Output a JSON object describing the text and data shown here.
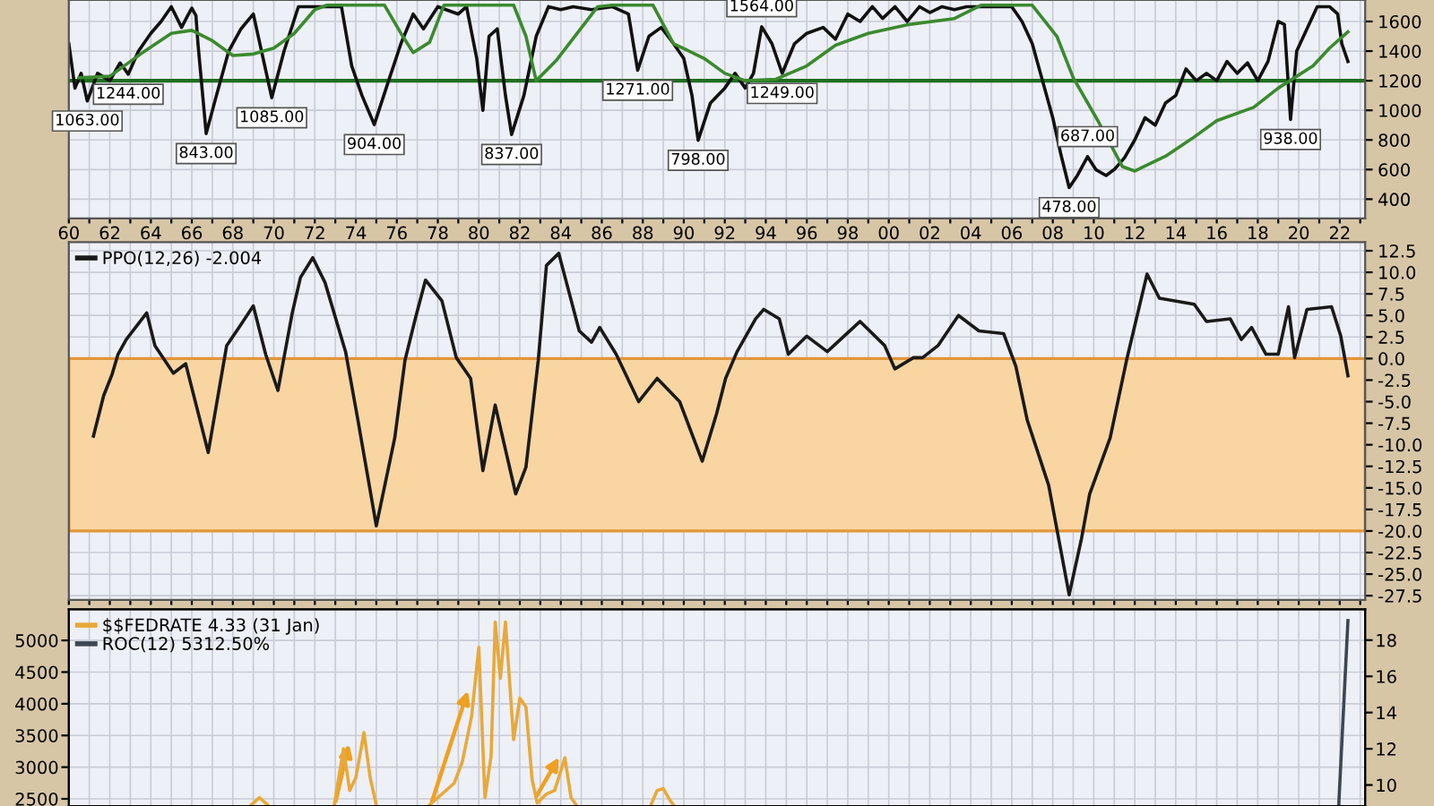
{
  "chart_data": [
    {
      "type": "line",
      "xlim": [
        1960,
        2023.24
      ],
      "ylim": [
        270,
        1745
      ],
      "xticks": [
        {
          "value": 1960,
          "label": "60"
        },
        {
          "value": 1961,
          "label": null
        },
        {
          "value": 1962,
          "label": "62"
        },
        {
          "value": 1963,
          "label": null
        },
        {
          "value": 1964,
          "label": "64"
        },
        {
          "value": 1965,
          "label": null
        },
        {
          "value": 1966,
          "label": "66"
        },
        {
          "value": 1967,
          "label": null
        },
        {
          "value": 1968,
          "label": "68"
        },
        {
          "value": 1969,
          "label": null
        },
        {
          "value": 1970,
          "label": "70"
        },
        {
          "value": 1971,
          "label": null
        },
        {
          "value": 1972,
          "label": "72"
        },
        {
          "value": 1973,
          "label": null
        },
        {
          "value": 1974,
          "label": "74"
        },
        {
          "value": 1975,
          "label": null
        },
        {
          "value": 1976,
          "label": "76"
        },
        {
          "value": 1977,
          "label": null
        },
        {
          "value": 1978,
          "label": "78"
        },
        {
          "value": 1979,
          "label": null
        },
        {
          "value": 1980,
          "label": "80"
        },
        {
          "value": 1981,
          "label": null
        },
        {
          "value": 1982,
          "label": "82"
        },
        {
          "value": 1983,
          "label": null
        },
        {
          "value": 1984,
          "label": "84"
        },
        {
          "value": 1985,
          "label": null
        },
        {
          "value": 1986,
          "label": "86"
        },
        {
          "value": 1987,
          "label": null
        },
        {
          "value": 1988,
          "label": "88"
        },
        {
          "value": 1989,
          "label": null
        },
        {
          "value": 1990,
          "label": "90"
        },
        {
          "value": 1991,
          "label": null
        },
        {
          "value": 1992,
          "label": "92"
        },
        {
          "value": 1993,
          "label": null
        },
        {
          "value": 1994,
          "label": "94"
        },
        {
          "value": 1995,
          "label": null
        },
        {
          "value": 1996,
          "label": "96"
        },
        {
          "value": 1997,
          "label": null
        },
        {
          "value": 1998,
          "label": "98"
        },
        {
          "value": 1999,
          "label": null
        },
        {
          "value": 2000,
          "label": "00"
        },
        {
          "value": 2001,
          "label": null
        },
        {
          "value": 2002,
          "label": "02"
        },
        {
          "value": 2003,
          "label": null
        },
        {
          "value": 2004,
          "label": "04"
        },
        {
          "value": 2005,
          "label": null
        },
        {
          "value": 2006,
          "label": "06"
        },
        {
          "value": 2007,
          "label": null
        },
        {
          "value": 2008,
          "label": "08"
        },
        {
          "value": 2009,
          "label": null
        },
        {
          "value": 2010,
          "label": "10"
        },
        {
          "value": 2011,
          "label": null
        },
        {
          "value": 2012,
          "label": "12"
        },
        {
          "value": 2013,
          "label": null
        },
        {
          "value": 2014,
          "label": "14"
        },
        {
          "value": 2015,
          "label": null
        },
        {
          "value": 2016,
          "label": "16"
        },
        {
          "value": 2017,
          "label": null
        },
        {
          "value": 2018,
          "label": "18"
        },
        {
          "value": 2019,
          "label": null
        },
        {
          "value": 2020,
          "label": "20"
        },
        {
          "value": 2021,
          "label": null
        },
        {
          "value": 2022,
          "label": "22"
        },
        {
          "value": 2023,
          "label": null
        }
      ],
      "yticks": [
        400,
        600,
        800,
        1000,
        1200,
        1400,
        1600
      ],
      "grid": true,
      "series": [
        {
          "color": "#111111",
          "x": [
            1960.0,
            1960.3,
            1960.6,
            1960.9,
            1961.4,
            1962.0,
            1962.5,
            1962.9,
            1963.4,
            1964.0,
            1964.5,
            1965.0,
            1965.5,
            1965.8,
            1966.0,
            1966.2,
            1966.3,
            1966.7,
            1967.2,
            1967.8,
            1968.4,
            1969.0,
            1969.4,
            1969.9,
            1970.5,
            1971.2,
            1973.3,
            1973.8,
            1974.3,
            1974.9,
            1975.6,
            1976.2,
            1976.8,
            1977.3,
            1978.0,
            1979.0,
            1979.4,
            1979.9,
            1980.2,
            1980.5,
            1980.9,
            1981.3,
            1981.6,
            1982.2,
            1982.8,
            1983.4,
            1984.0,
            1984.6,
            1985.5,
            1986.5,
            1987.3,
            1987.75,
            1988.3,
            1988.9,
            1989.5,
            1990.0,
            1990.4,
            1990.7,
            1991.3,
            1992.0,
            1992.5,
            1993.0,
            1993.4,
            1993.8,
            1994.3,
            1994.8,
            1995.4,
            1996.0,
            1996.8,
            1997.4,
            1998.0,
            1998.6,
            1999.2,
            1999.7,
            2000.3,
            2000.9,
            2001.5,
            2002.0,
            2002.6,
            2003.2,
            2003.8,
            2006.0,
            2006.5,
            2007.0,
            2007.5,
            2008.0,
            2008.4,
            2008.8,
            2009.2,
            2009.7,
            2010.1,
            2010.6,
            2011.0,
            2011.5,
            2012.0,
            2012.5,
            2013.0,
            2013.5,
            2014.0,
            2014.5,
            2015.0,
            2015.5,
            2016.0,
            2016.5,
            2017.0,
            2017.5,
            2018.0,
            2018.5,
            2019.0,
            2019.3,
            2019.6,
            2019.9,
            2020.4,
            2020.9,
            2021.5,
            2021.9,
            2022.1,
            2022.4
          ],
          "values": [
            1450,
            1150,
            1250,
            1063,
            1250,
            1200,
            1320,
            1244,
            1400,
            1520,
            1600,
            1700,
            1560,
            1640,
            1690,
            1640,
            1450,
            843,
            1100,
            1400,
            1550,
            1650,
            1400,
            1085,
            1400,
            1700,
            1700,
            1300,
            1100,
            904,
            1200,
            1450,
            1650,
            1550,
            1700,
            1650,
            1700,
            1350,
            1000,
            1500,
            1550,
            1100,
            837,
            1100,
            1500,
            1700,
            1680,
            1700,
            1680,
            1700,
            1650,
            1271,
            1500,
            1560,
            1450,
            1350,
            1100,
            798,
            1050,
            1150,
            1250,
            1150,
            1250,
            1564,
            1450,
            1249,
            1450,
            1520,
            1560,
            1480,
            1650,
            1600,
            1700,
            1620,
            1700,
            1600,
            1700,
            1660,
            1700,
            1680,
            1700,
            1700,
            1600,
            1450,
            1200,
            950,
            700,
            478,
            560,
            687,
            600,
            560,
            600,
            680,
            800,
            950,
            900,
            1050,
            1100,
            1280,
            1200,
            1250,
            1200,
            1330,
            1250,
            1320,
            1200,
            1330,
            1600,
            1580,
            938,
            1400,
            1550,
            1700,
            1700,
            1650,
            1450,
            1330
          ]
        },
        {
          "color": "#3b8a2e",
          "x": [
            1960.5,
            1962.0,
            1963.5,
            1965.0,
            1966.0,
            1967.0,
            1968.0,
            1969.0,
            1970.0,
            1971.0,
            1972.0,
            1972.6,
            1975.4,
            1976.2,
            1976.8,
            1977.6,
            1978.3,
            1981.7,
            1982.3,
            1982.8,
            1983.8,
            1984.8,
            1985.8,
            1986.5,
            1988.5,
            1989.5,
            1991.0,
            1992.0,
            1993.0,
            1994.5,
            1996.0,
            1997.4,
            1999.0,
            2001.0,
            2003.2,
            2004.5,
            2007.0,
            2008.2,
            2009.0,
            2010.2,
            2011.4,
            2012.0,
            2013.5,
            2014.8,
            2016.0,
            2017.8,
            2019.0,
            2020.7,
            2021.5,
            2022.4
          ],
          "values": [
            1220,
            1230,
            1380,
            1520,
            1540,
            1470,
            1370,
            1380,
            1420,
            1520,
            1680,
            1710,
            1710,
            1520,
            1390,
            1460,
            1710,
            1710,
            1500,
            1200,
            1340,
            1520,
            1700,
            1710,
            1710,
            1450,
            1350,
            1250,
            1200,
            1210,
            1300,
            1440,
            1520,
            1580,
            1620,
            1710,
            1710,
            1500,
            1220,
            930,
            620,
            590,
            690,
            810,
            930,
            1020,
            1150,
            1300,
            1420,
            1530
          ]
        }
      ],
      "ref_lines": [
        {
          "axis": "y",
          "value": 1200,
          "color": "#1f6e1f"
        }
      ],
      "annotations": [
        {
          "text": "1063.00",
          "x": 1960.9,
          "y": 1063
        },
        {
          "text": "1244.00",
          "x": 1962.9,
          "y": 1244
        },
        {
          "text": "843.00",
          "x": 1966.7,
          "y": 843
        },
        {
          "text": "1085.00",
          "x": 1969.9,
          "y": 1085
        },
        {
          "text": "904.00",
          "x": 1974.9,
          "y": 904
        },
        {
          "text": "837.00",
          "x": 1981.6,
          "y": 837
        },
        {
          "text": "1271.00",
          "x": 1987.75,
          "y": 1271
        },
        {
          "text": "798.00",
          "x": 1990.7,
          "y": 798
        },
        {
          "text": "1564.00",
          "x": 1993.8,
          "y": 1564
        },
        {
          "text": "1249.00",
          "x": 1994.8,
          "y": 1249
        },
        {
          "text": "478.00",
          "x": 2008.8,
          "y": 478
        },
        {
          "text": "687.00",
          "x": 2009.7,
          "y": 687
        },
        {
          "text": "938.00",
          "x": 2019.6,
          "y": 938
        }
      ]
    },
    {
      "type": "line",
      "xlim": [
        1960,
        2023.24
      ],
      "ylim": [
        -28,
        13.5
      ],
      "tick_labels": "y",
      "grid": true,
      "legend": "top left",
      "xticks": [
        1960,
        1961,
        1962,
        1963,
        1964,
        1965,
        1966,
        1967,
        1968,
        1969,
        1970,
        1971,
        1972,
        1973,
        1974,
        1975,
        1976,
        1977,
        1978,
        1979,
        1980,
        1981,
        1982,
        1983,
        1984,
        1985,
        1986,
        1987,
        1988,
        1989,
        1990,
        1991,
        1992,
        1993,
        1994,
        1995,
        1996,
        1997,
        1998,
        1999,
        2000,
        2001,
        2002,
        2003,
        2004,
        2005,
        2006,
        2007,
        2008,
        2009,
        2010,
        2011,
        2012,
        2013,
        2014,
        2015,
        2016,
        2017,
        2018,
        2019,
        2020,
        2021,
        2022,
        2023
      ],
      "yticks": [
        {
          "value": 12.5,
          "label": "12.5"
        },
        {
          "value": 10,
          "label": "10.0"
        },
        {
          "value": 7.5,
          "label": "7.5"
        },
        {
          "value": 5,
          "label": "5.0"
        },
        {
          "value": 2.5,
          "label": "2.5"
        },
        {
          "value": 0,
          "label": "0.0"
        },
        {
          "value": -2.5,
          "label": "-2.5"
        },
        {
          "value": -5,
          "label": "-5.0"
        },
        {
          "value": -7.5,
          "label": "-7.5"
        },
        {
          "value": -10,
          "label": "-10.0"
        },
        {
          "value": -12.5,
          "label": "-12.5"
        },
        {
          "value": -15,
          "label": "-15.0"
        },
        {
          "value": -17.5,
          "label": "-17.5"
        },
        {
          "value": -20,
          "label": "-20.0"
        },
        {
          "value": -22.5,
          "label": "-22.5"
        },
        {
          "value": -25,
          "label": "-25.0"
        },
        {
          "value": -27.5,
          "label": "-27.5"
        }
      ],
      "bands": [
        {
          "axis": "y",
          "from": -20,
          "to": 0,
          "color": "#f9d5a2"
        }
      ],
      "series": [
        {
          "name": "PPO(12,26) -2.004",
          "color": "#1a1a1a",
          "x": [
            1961.2,
            1961.7,
            1962.1,
            1962.4,
            1962.8,
            1963.8,
            1964.2,
            1965.1,
            1965.7,
            1966.8,
            1967.7,
            1968.3,
            1969.0,
            1969.6,
            1970.2,
            1970.9,
            1971.3,
            1971.9,
            1972.5,
            1973.5,
            1974.1,
            1975.0,
            1975.9,
            1976.4,
            1976.9,
            1977.4,
            1978.2,
            1978.9,
            1979.6,
            1980.2,
            1980.8,
            1981.8,
            1982.3,
            1982.9,
            1983.3,
            1983.9,
            1984.9,
            1985.5,
            1985.9,
            1986.7,
            1987.8,
            1988.7,
            1989.8,
            1990.9,
            1991.6,
            1992.04,
            1992.6,
            1993.5,
            1993.9,
            1994.66,
            1995.1,
            1996.0,
            1997.0,
            1998.6,
            1999.8,
            2000.3,
            2001.2,
            2001.65,
            2002.4,
            2003.4,
            2004.4,
            2005.6,
            2006.2,
            2006.75,
            2007.8,
            2008.8,
            2009.4,
            2009.8,
            2010.8,
            2011.6,
            2012.6,
            2013.2,
            2014.9,
            2015.5,
            2016.66,
            2017.2,
            2017.7,
            2018.4,
            2019.0,
            2019.5,
            2019.8,
            2020.4,
            2021.6,
            2022.05,
            2022.4
          ],
          "values": [
            -9.0,
            -4.3,
            -1.9,
            0.5,
            2.2,
            5.3,
            1.5,
            -1.7,
            -0.6,
            -10.9,
            1.5,
            3.6,
            6.1,
            0.5,
            -3.7,
            5.3,
            9.4,
            11.7,
            8.8,
            0.8,
            -7.1,
            -19.4,
            -9.2,
            -0.2,
            4.6,
            9.1,
            6.7,
            0.1,
            -2.3,
            -13.0,
            -5.4,
            -15.7,
            -12.6,
            -0.2,
            10.8,
            12.2,
            3.2,
            1.9,
            3.6,
            0.5,
            -5.0,
            -2.3,
            -5.0,
            -11.9,
            -6.4,
            -2.3,
            0.8,
            4.6,
            5.7,
            4.6,
            0.5,
            2.6,
            0.8,
            4.3,
            1.5,
            -1.2,
            0.1,
            0.1,
            1.5,
            5.0,
            3.2,
            2.9,
            -0.9,
            -7.1,
            -14.7,
            -27.4,
            -20.9,
            -15.7,
            -9.2,
            -0.2,
            9.8,
            7.0,
            6.3,
            4.3,
            4.6,
            2.2,
            3.6,
            0.5,
            0.5,
            6.0,
            0.1,
            5.7,
            6.0,
            2.6,
            -2.004
          ]
        }
      ]
    },
    {
      "type": "line",
      "xlim": [
        1960,
        2023.24
      ],
      "ylim": [
        2387,
        5490
      ],
      "y2lim": [
        8.84,
        19.7
      ],
      "tick_labels": "y",
      "grid": true,
      "legend": "top left",
      "xticks": [
        1960,
        1961,
        1962,
        1963,
        1964,
        1965,
        1966,
        1967,
        1968,
        1969,
        1970,
        1971,
        1972,
        1973,
        1974,
        1975,
        1976,
        1977,
        1978,
        1979,
        1980,
        1981,
        1982,
        1983,
        1984,
        1985,
        1986,
        1987,
        1988,
        1989,
        1990,
        1991,
        1992,
        1993,
        1994,
        1995,
        1996,
        1997,
        1998,
        1999,
        2000,
        2001,
        2002,
        2003,
        2004,
        2005,
        2006,
        2007,
        2008,
        2009,
        2010,
        2011,
        2012,
        2013,
        2014,
        2015,
        2016,
        2017,
        2018,
        2019,
        2020,
        2021,
        2022,
        2023
      ],
      "yticks": [
        2500,
        3000,
        3500,
        4000,
        4500,
        5000
      ],
      "y2ticks": [
        10,
        12,
        14,
        16,
        18
      ],
      "series": [
        {
          "name": "$$FEDRATE 4.33 (31 Jan)",
          "color": "#e8a93a",
          "axis": "y2",
          "x": [
            1968.9,
            1969.3,
            1969.7,
            1970.5,
            1972.95,
            1973.4,
            1973.7,
            1974.0,
            1974.4,
            1974.7,
            1975.0,
            1976.0,
            1977.6,
            1978.8,
            1979.2,
            1979.65,
            1980.0,
            1980.3,
            1980.6,
            1980.8,
            1981.05,
            1981.3,
            1981.7,
            1982.0,
            1982.3,
            1982.6,
            1982.85,
            1983.3,
            1983.7,
            1984.2,
            1984.5,
            1984.75,
            1986.0,
            1988.4,
            1988.7,
            1989.0,
            1989.3,
            1989.5
          ],
          "values": [
            8.9,
            9.3,
            8.9,
            null,
            8.9,
            12.0,
            9.7,
            10.4,
            12.9,
            10.4,
            8.9,
            null,
            8.9,
            10.1,
            11.3,
            13.8,
            17.6,
            9.3,
            11.6,
            19.0,
            15.9,
            19.0,
            12.5,
            14.8,
            14.3,
            10.3,
            9.0,
            9.5,
            9.7,
            11.5,
            9.3,
            8.9,
            null,
            8.9,
            9.7,
            9.8,
            9.2,
            8.9
          ]
        },
        {
          "name": "ROC(12) 5312.50%",
          "color": "#3d4753",
          "x": [
            2021.95,
            2022.4
          ],
          "values": [
            2400,
            5312.5
          ]
        }
      ]
    }
  ]
}
